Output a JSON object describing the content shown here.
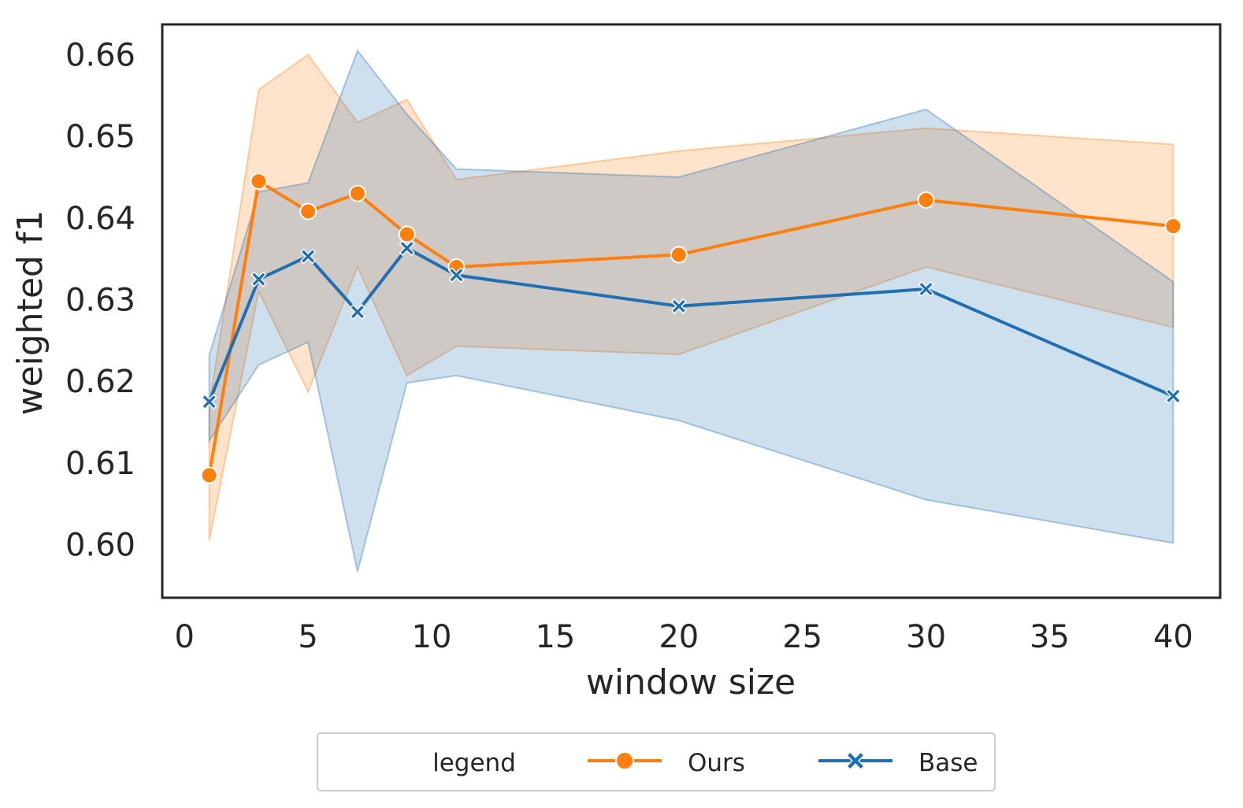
{
  "chart_data": {
    "type": "line",
    "xlabel": "window size",
    "ylabel": "weighted f1",
    "xlim": [
      -0.9,
      41.9
    ],
    "ylim": [
      0.5935,
      0.6637
    ],
    "xticks": [
      0,
      5,
      10,
      15,
      20,
      25,
      30,
      35,
      40
    ],
    "yticks": [
      0.6,
      0.61,
      0.62,
      0.63,
      0.64,
      0.65,
      0.66
    ],
    "xtick_labels": [
      "0",
      "5",
      "10",
      "15",
      "20",
      "25",
      "30",
      "35",
      "40"
    ],
    "ytick_labels": [
      "0.60",
      "0.61",
      "0.62",
      "0.63",
      "0.64",
      "0.65",
      "0.66"
    ],
    "grid": false,
    "legend": {
      "title": "legend",
      "placement": "bottom-center"
    },
    "series": [
      {
        "name": "Ours",
        "color": "#ff7f0e",
        "marker": "circle",
        "x": [
          1,
          3,
          5,
          7,
          9,
          11,
          20,
          30,
          40
        ],
        "y": [
          0.6085,
          0.6445,
          0.6408,
          0.643,
          0.638,
          0.634,
          0.6355,
          0.6422,
          0.639
        ],
        "ci_low": [
          0.6005,
          0.631,
          0.6187,
          0.634,
          0.6207,
          0.6243,
          0.6233,
          0.634,
          0.6266
        ],
        "ci_high": [
          0.617,
          0.6557,
          0.66,
          0.6517,
          0.6545,
          0.6447,
          0.6482,
          0.651,
          0.649
        ]
      },
      {
        "name": "Base",
        "color": "#1f6fb2",
        "marker": "x",
        "x": [
          1,
          3,
          5,
          7,
          9,
          11,
          20,
          30,
          40
        ],
        "y": [
          0.6175,
          0.6325,
          0.6353,
          0.6285,
          0.6363,
          0.633,
          0.6292,
          0.6313,
          0.6182
        ],
        "ci_low": [
          0.6127,
          0.622,
          0.6248,
          0.5967,
          0.6198,
          0.6207,
          0.6152,
          0.6055,
          0.6002
        ],
        "ci_high": [
          0.6232,
          0.6432,
          0.6443,
          0.6605,
          0.6527,
          0.646,
          0.645,
          0.6533,
          0.6322
        ]
      }
    ]
  }
}
